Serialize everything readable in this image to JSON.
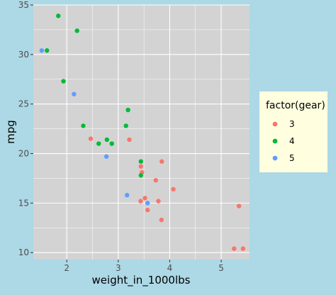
{
  "colors": {
    "background": "#add8e6",
    "panel": "#d3d3d3",
    "grid": "#ffffff",
    "legend_bg": "#ffffe0"
  },
  "chart_data": {
    "type": "scatter",
    "xlabel": "weight_in_1000lbs",
    "ylabel": "mpg",
    "xlim": [
      1.35,
      5.55
    ],
    "ylim": [
      9.3,
      35.0
    ],
    "x_ticks": [
      2,
      3,
      4,
      5
    ],
    "y_ticks": [
      10,
      15,
      20,
      25,
      30,
      35
    ],
    "grid": true,
    "legend": {
      "title": "factor(gear)",
      "position": "right",
      "entries": [
        {
          "label": "3",
          "color": "#f8766d"
        },
        {
          "label": "4",
          "color": "#00ba38"
        },
        {
          "label": "5",
          "color": "#619cff"
        }
      ]
    },
    "series": [
      {
        "name": "3",
        "color": "#f8766d",
        "points": [
          [
            3.215,
            21.4
          ],
          [
            3.44,
            18.7
          ],
          [
            3.46,
            18.1
          ],
          [
            3.57,
            14.3
          ],
          [
            4.07,
            16.4
          ],
          [
            3.73,
            17.3
          ],
          [
            3.78,
            15.2
          ],
          [
            5.25,
            10.4
          ],
          [
            5.424,
            10.4
          ],
          [
            5.345,
            14.7
          ],
          [
            2.465,
            21.5
          ],
          [
            3.52,
            15.5
          ],
          [
            3.435,
            15.2
          ],
          [
            3.84,
            13.3
          ],
          [
            3.845,
            19.2
          ]
        ]
      },
      {
        "name": "4",
        "color": "#00ba38",
        "points": [
          [
            2.62,
            21.0
          ],
          [
            2.875,
            21.0
          ],
          [
            2.32,
            22.8
          ],
          [
            3.19,
            24.4
          ],
          [
            3.15,
            22.8
          ],
          [
            3.44,
            19.2
          ],
          [
            3.44,
            17.8
          ],
          [
            2.2,
            32.4
          ],
          [
            1.615,
            30.4
          ],
          [
            1.835,
            33.9
          ],
          [
            1.935,
            27.3
          ],
          [
            2.78,
            21.4
          ]
        ]
      },
      {
        "name": "5",
        "color": "#619cff",
        "points": [
          [
            2.14,
            26.0
          ],
          [
            1.513,
            30.4
          ],
          [
            3.17,
            15.8
          ],
          [
            2.77,
            19.7
          ],
          [
            3.57,
            15.0
          ]
        ]
      }
    ]
  }
}
